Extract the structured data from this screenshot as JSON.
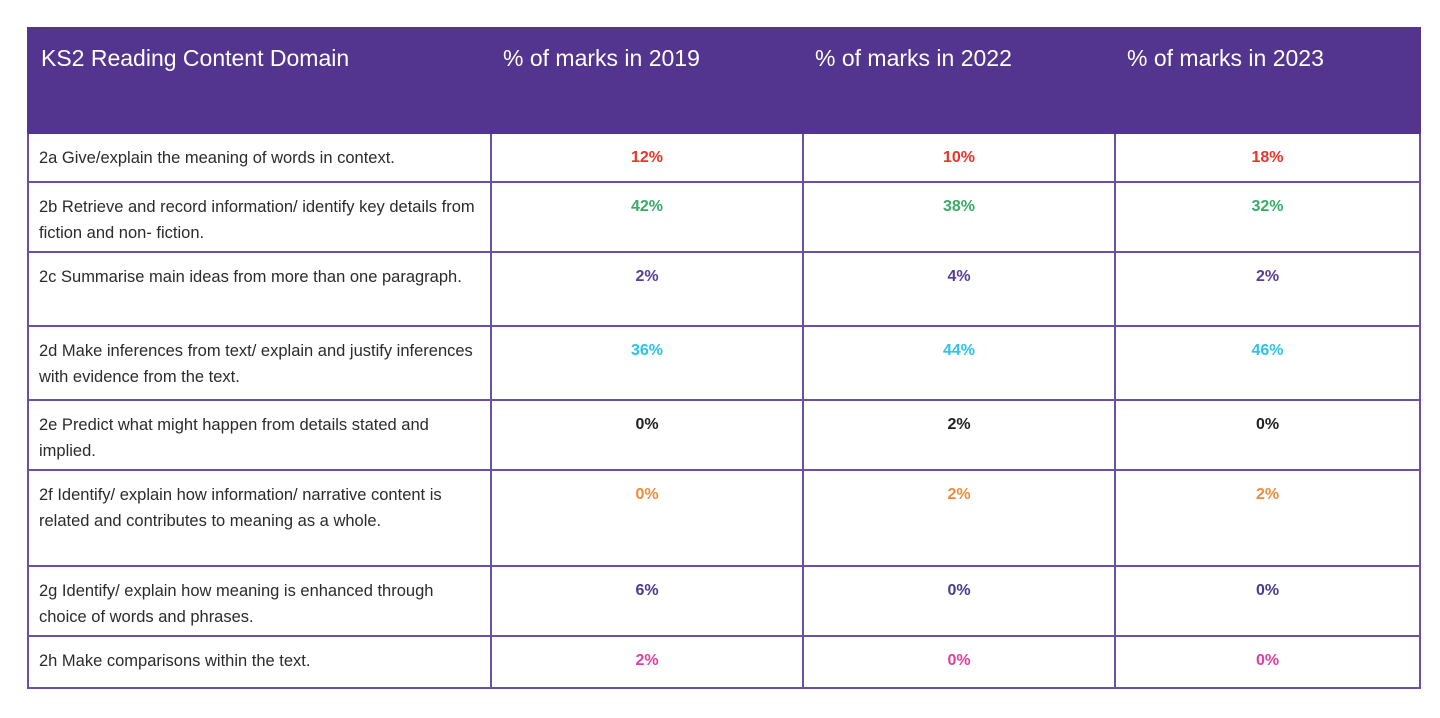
{
  "chart_data": {
    "type": "table",
    "title": "",
    "columns": [
      "KS2 Reading Content Domain",
      "% of marks in 2019",
      "% of marks in 2022",
      "% of marks in 2023"
    ],
    "rows": [
      {
        "domain": "2a Give/explain the meaning of words in context.",
        "values": [
          "12%",
          "10%",
          "18%"
        ],
        "color": "#e8352b"
      },
      {
        "domain": "2b Retrieve and record information/ identify key details from fiction and non- fiction.",
        "values": [
          "42%",
          "38%",
          "32%"
        ],
        "color": "#3aaa6a"
      },
      {
        "domain": "2c Summarise main ideas from more than one paragraph.",
        "values": [
          "2%",
          "4%",
          "2%"
        ],
        "color": "#5a3c9c"
      },
      {
        "domain": "2d Make inferences from text/ explain and justify inferences with evidence from the text.",
        "values": [
          "36%",
          "44%",
          "46%"
        ],
        "color": "#2bc3e8"
      },
      {
        "domain": "2e Predict what might happen from details stated and implied.",
        "values": [
          "0%",
          "2%",
          "0%"
        ],
        "color": "#222222"
      },
      {
        "domain": "2f Identify/ explain how information/ narrative content is related and contributes to meaning as a whole.",
        "values": [
          "0%",
          "2%",
          "2%"
        ],
        "color": "#f08a3c"
      },
      {
        "domain": "2g Identify/ explain how meaning is enhanced through choice of words and phrases.",
        "values": [
          "6%",
          "0%",
          "0%"
        ],
        "color": "#4a3a8e"
      },
      {
        "domain": "2h Make comparisons within the text.",
        "values": [
          "2%",
          "0%",
          "0%"
        ],
        "color": "#e23ea0"
      }
    ]
  },
  "colors": {
    "header_bg": "#533590",
    "border": "#6a4fa8"
  }
}
